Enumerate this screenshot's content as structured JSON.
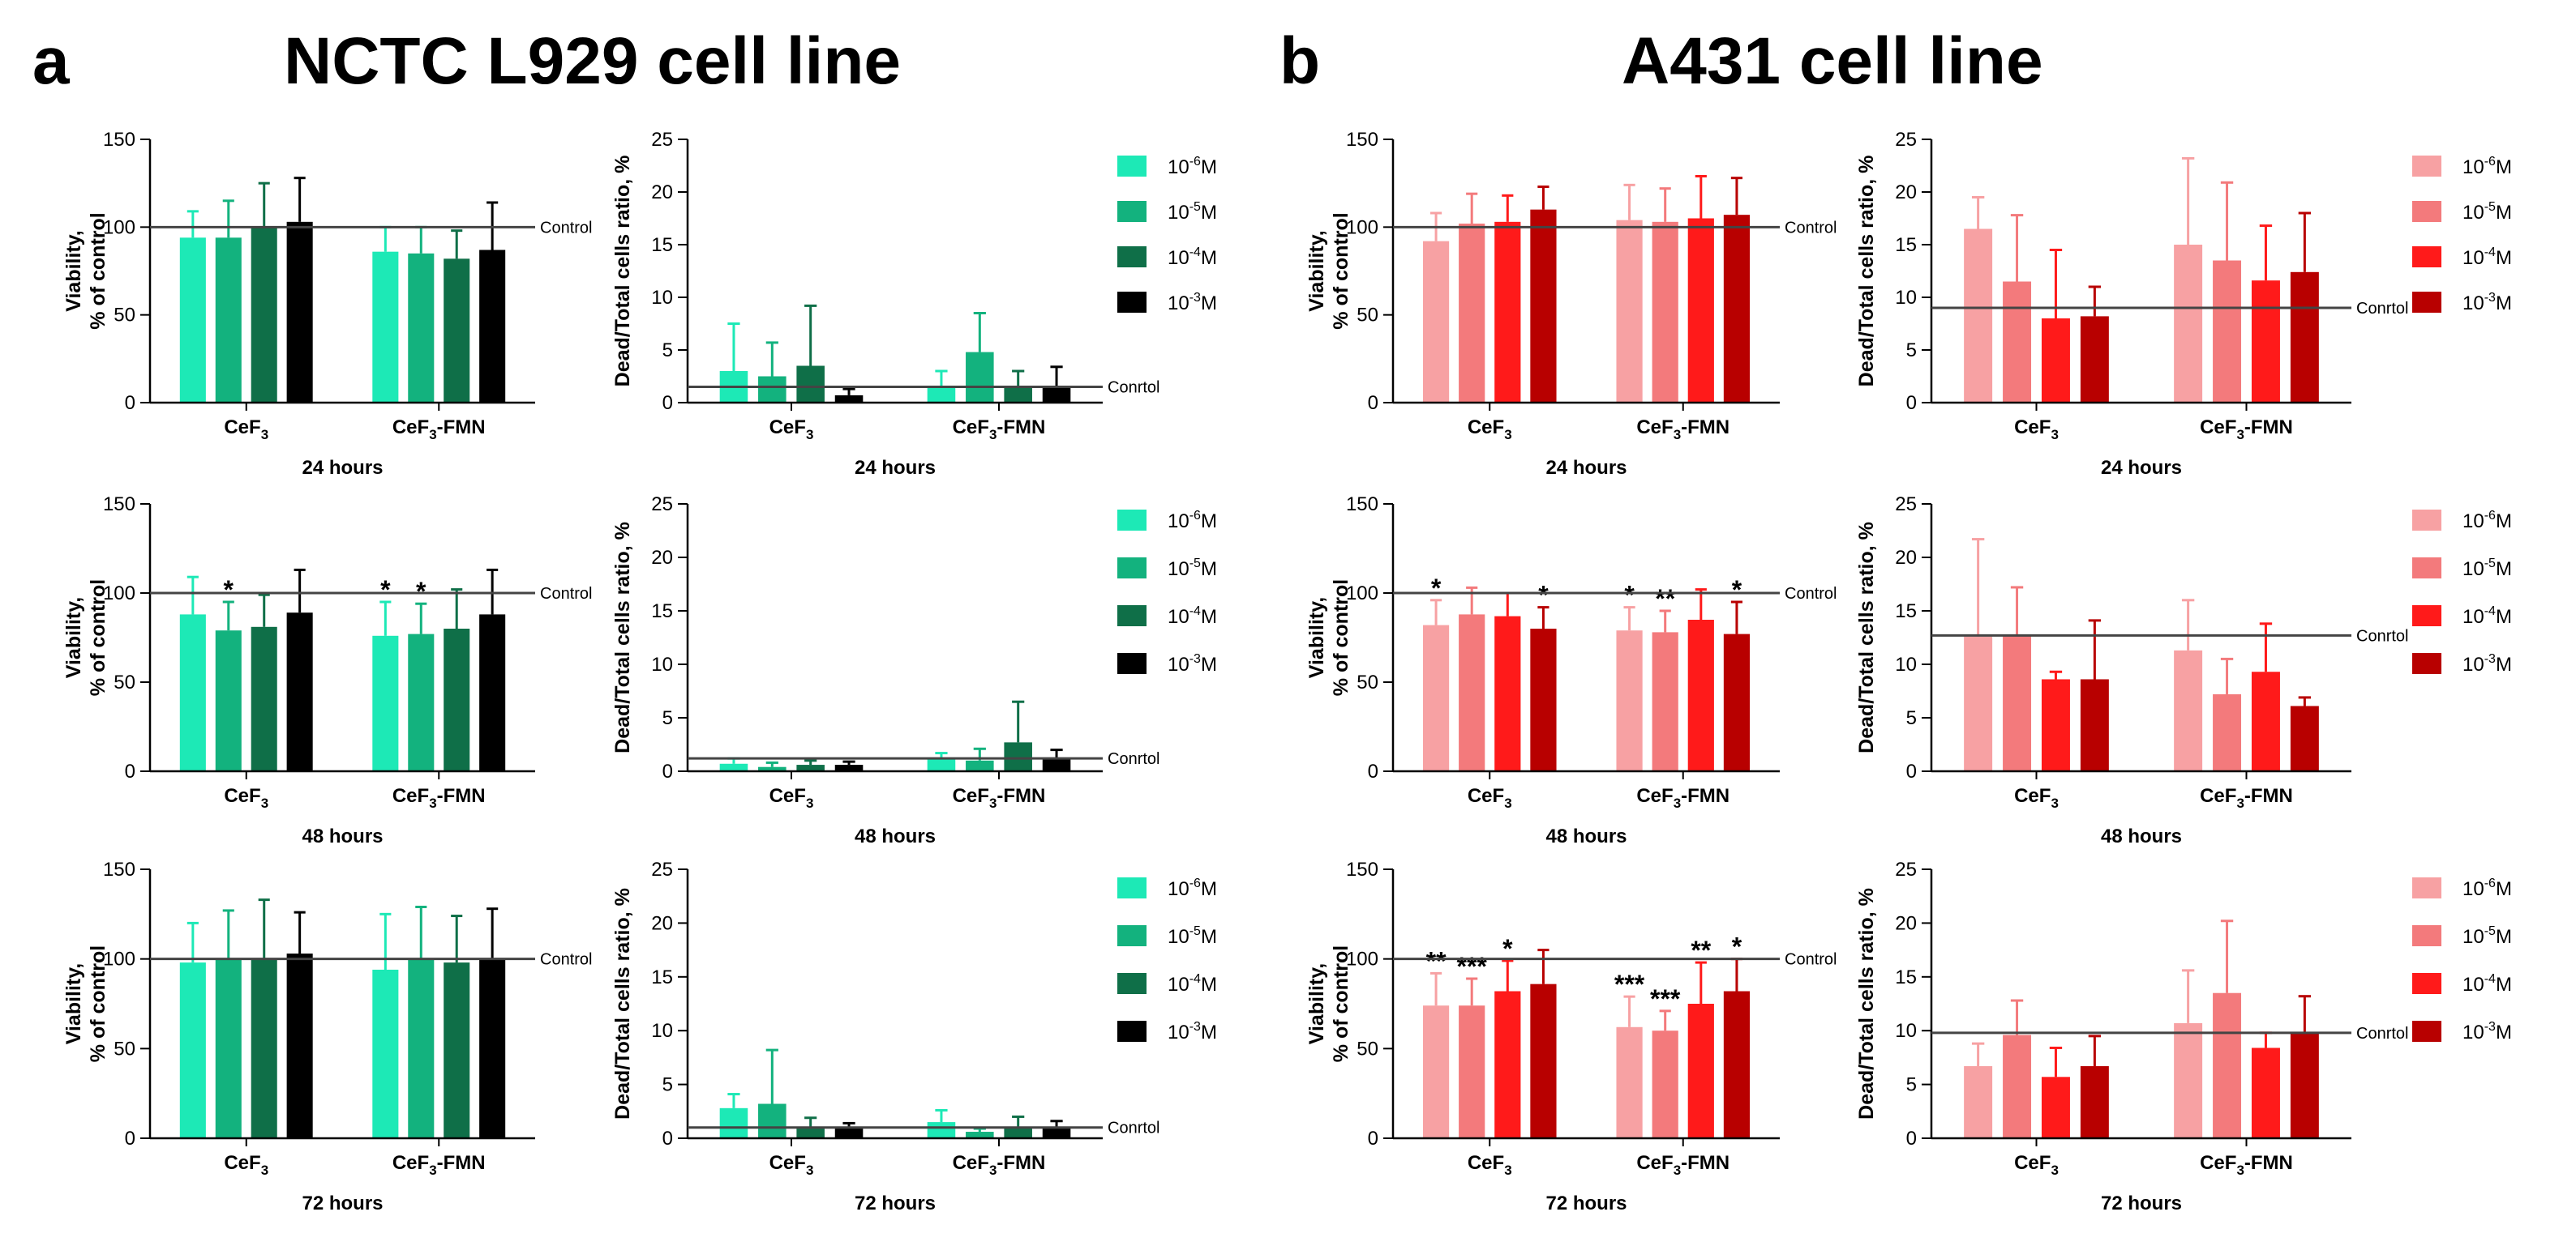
{
  "figure": {
    "panels": [
      {
        "letter": "a",
        "title": "NCTC L929 cell line"
      },
      {
        "letter": "b",
        "title": "A431 cell line"
      }
    ],
    "legend_labels": [
      {
        "base": "10",
        "exp": "-6",
        "unit": "M"
      },
      {
        "base": "10",
        "exp": "-5",
        "unit": "M"
      },
      {
        "base": "10",
        "exp": "-4",
        "unit": "M"
      },
      {
        "base": "10",
        "exp": "-3",
        "unit": "M"
      }
    ],
    "colors": {
      "a": [
        "#1de9b6",
        "#13b27e",
        "#0f6f48",
        "#000000"
      ],
      "b": [
        "#f7a1a3",
        "#f37a7c",
        "#ff1a1a",
        "#b80000"
      ]
    },
    "groups": [
      {
        "base": "CeF",
        "sub": "3",
        "suffix": ""
      },
      {
        "base": "CeF",
        "sub": "3",
        "suffix": "-FMN"
      }
    ]
  },
  "chart_data": [
    {
      "type": "bar",
      "panel": "a",
      "row": 0,
      "kind": "viability",
      "ylabel": [
        "Viability,",
        "% of control"
      ],
      "ylim": [
        0,
        150
      ],
      "yticks": [
        0,
        50,
        100,
        150
      ],
      "xlabel": "24 hours",
      "control_label": "Control",
      "control_value": 100,
      "series": [
        {
          "name": "10^-6M",
          "values": [
            94,
            86
          ],
          "errors": [
            15,
            14
          ]
        },
        {
          "name": "10^-5M",
          "values": [
            94,
            85
          ],
          "errors": [
            21,
            15
          ]
        },
        {
          "name": "10^-4M",
          "values": [
            100,
            82
          ],
          "errors": [
            25,
            16
          ]
        },
        {
          "name": "10^-3M",
          "values": [
            103,
            87
          ],
          "errors": [
            25,
            27
          ]
        }
      ],
      "stars": [
        [
          "",
          "",
          "",
          ""
        ],
        [
          "",
          "",
          "",
          ""
        ]
      ]
    },
    {
      "type": "bar",
      "panel": "a",
      "row": 0,
      "kind": "dead",
      "ylabel": [
        "Dead/Total cells ratio, %"
      ],
      "ylim": [
        0,
        25
      ],
      "yticks": [
        0,
        5,
        10,
        15,
        20,
        25
      ],
      "xlabel": "24 hours",
      "control_label": "Conrtol",
      "control_value": 1.5,
      "series": [
        {
          "name": "10^-6M",
          "values": [
            3,
            1.5
          ],
          "errors": [
            4.5,
            1.5
          ]
        },
        {
          "name": "10^-5M",
          "values": [
            2.5,
            4.8
          ],
          "errors": [
            3.2,
            3.7
          ]
        },
        {
          "name": "10^-4M",
          "values": [
            3.5,
            1.5
          ],
          "errors": [
            5.7,
            1.5
          ]
        },
        {
          "name": "10^-3M",
          "values": [
            0.7,
            1.6
          ],
          "errors": [
            0.6,
            1.8
          ]
        }
      ],
      "stars": [
        [
          "",
          "",
          "",
          ""
        ],
        [
          "",
          "",
          "",
          ""
        ]
      ]
    },
    {
      "type": "bar",
      "panel": "b",
      "row": 0,
      "kind": "viability",
      "ylabel": [
        "Viability,",
        "% of control"
      ],
      "ylim": [
        0,
        150
      ],
      "yticks": [
        0,
        50,
        100,
        150
      ],
      "xlabel": "24 hours",
      "control_label": "Control",
      "control_value": 100,
      "series": [
        {
          "name": "10^-6M",
          "values": [
            92,
            104
          ],
          "errors": [
            16,
            20
          ]
        },
        {
          "name": "10^-5M",
          "values": [
            102,
            103
          ],
          "errors": [
            17,
            19
          ]
        },
        {
          "name": "10^-4M",
          "values": [
            103,
            105
          ],
          "errors": [
            15,
            24
          ]
        },
        {
          "name": "10^-3M",
          "values": [
            110,
            107
          ],
          "errors": [
            13,
            21
          ]
        }
      ],
      "stars": [
        [
          "",
          "",
          "",
          ""
        ],
        [
          "",
          "",
          "",
          ""
        ]
      ]
    },
    {
      "type": "bar",
      "panel": "b",
      "row": 0,
      "kind": "dead",
      "ylabel": [
        "Dead/Total cells ratio, %"
      ],
      "ylim": [
        0,
        25
      ],
      "yticks": [
        0,
        5,
        10,
        15,
        20,
        25
      ],
      "xlabel": "24 hours",
      "control_label": "Conrtol",
      "control_value": 9,
      "series": [
        {
          "name": "10^-6M",
          "values": [
            16.5,
            15
          ],
          "errors": [
            3,
            8.2
          ]
        },
        {
          "name": "10^-5M",
          "values": [
            11.5,
            13.5
          ],
          "errors": [
            6.3,
            7.4
          ]
        },
        {
          "name": "10^-4M",
          "values": [
            8,
            11.6
          ],
          "errors": [
            6.5,
            5.2
          ]
        },
        {
          "name": "10^-3M",
          "values": [
            8.2,
            12.4
          ],
          "errors": [
            2.8,
            5.6
          ]
        }
      ],
      "stars": [
        [
          "",
          "",
          "",
          ""
        ],
        [
          "",
          "",
          "",
          ""
        ]
      ]
    },
    {
      "type": "bar",
      "panel": "a",
      "row": 1,
      "kind": "viability",
      "ylabel": [
        "Viability,",
        "% of control"
      ],
      "ylim": [
        0,
        150
      ],
      "yticks": [
        0,
        50,
        100,
        150
      ],
      "xlabel": "48 hours",
      "control_label": "Control",
      "control_value": 100,
      "series": [
        {
          "name": "10^-6M",
          "values": [
            88,
            76
          ],
          "errors": [
            21,
            19
          ]
        },
        {
          "name": "10^-5M",
          "values": [
            79,
            77
          ],
          "errors": [
            16,
            17
          ]
        },
        {
          "name": "10^-4M",
          "values": [
            81,
            80
          ],
          "errors": [
            18,
            22
          ]
        },
        {
          "name": "10^-3M",
          "values": [
            89,
            88
          ],
          "errors": [
            24,
            25
          ]
        }
      ],
      "stars": [
        [
          "",
          "*",
          "",
          ""
        ],
        [
          "*",
          "*",
          "",
          ""
        ]
      ]
    },
    {
      "type": "bar",
      "panel": "a",
      "row": 1,
      "kind": "dead",
      "ylabel": [
        "Dead/Total cells ratio, %"
      ],
      "ylim": [
        0,
        25
      ],
      "yticks": [
        0,
        5,
        10,
        15,
        20,
        25
      ],
      "xlabel": "48 hours",
      "control_label": "Conrtol",
      "control_value": 1.2,
      "series": [
        {
          "name": "10^-6M",
          "values": [
            0.7,
            1.2
          ],
          "errors": [
            0.5,
            0.5
          ]
        },
        {
          "name": "10^-5M",
          "values": [
            0.4,
            1
          ],
          "errors": [
            0.4,
            1.1
          ]
        },
        {
          "name": "10^-4M",
          "values": [
            0.6,
            2.7
          ],
          "errors": [
            0.4,
            3.8
          ]
        },
        {
          "name": "10^-3M",
          "values": [
            0.6,
            1.2
          ],
          "errors": [
            0.3,
            0.8
          ]
        }
      ],
      "stars": [
        [
          "",
          "",
          "",
          ""
        ],
        [
          "",
          "",
          "",
          ""
        ]
      ]
    },
    {
      "type": "bar",
      "panel": "b",
      "row": 1,
      "kind": "viability",
      "ylabel": [
        "Viability,",
        "% of control"
      ],
      "ylim": [
        0,
        150
      ],
      "yticks": [
        0,
        50,
        100,
        150
      ],
      "xlabel": "48 hours",
      "control_label": "Control",
      "control_value": 100,
      "series": [
        {
          "name": "10^-6M",
          "values": [
            82,
            79
          ],
          "errors": [
            14,
            13
          ]
        },
        {
          "name": "10^-5M",
          "values": [
            88,
            78
          ],
          "errors": [
            15,
            12
          ]
        },
        {
          "name": "10^-4M",
          "values": [
            87,
            85
          ],
          "errors": [
            13,
            17
          ]
        },
        {
          "name": "10^-3M",
          "values": [
            80,
            77
          ],
          "errors": [
            12,
            18
          ]
        }
      ],
      "stars": [
        [
          "*",
          "",
          "",
          "*"
        ],
        [
          "*",
          "**",
          "",
          "*"
        ]
      ]
    },
    {
      "type": "bar",
      "panel": "b",
      "row": 1,
      "kind": "dead",
      "ylabel": [
        "Dead/Total cells ratio, %"
      ],
      "ylim": [
        0,
        25
      ],
      "yticks": [
        0,
        5,
        10,
        15,
        20,
        25
      ],
      "xlabel": "48 hours",
      "control_label": "Conrtol",
      "control_value": 12.7,
      "series": [
        {
          "name": "10^-6M",
          "values": [
            12.6,
            11.3
          ],
          "errors": [
            9.1,
            4.7
          ]
        },
        {
          "name": "10^-5M",
          "values": [
            12.7,
            7.2
          ],
          "errors": [
            4.5,
            3.3
          ]
        },
        {
          "name": "10^-4M",
          "values": [
            8.6,
            9.3
          ],
          "errors": [
            0.7,
            4.5
          ]
        },
        {
          "name": "10^-3M",
          "values": [
            8.6,
            6.1
          ],
          "errors": [
            5.5,
            0.8
          ]
        }
      ],
      "stars": [
        [
          "",
          "",
          "",
          ""
        ],
        [
          "",
          "",
          "",
          ""
        ]
      ]
    },
    {
      "type": "bar",
      "panel": "a",
      "row": 2,
      "kind": "viability",
      "ylabel": [
        "Viability,",
        "% of control"
      ],
      "ylim": [
        0,
        150
      ],
      "yticks": [
        0,
        50,
        100,
        150
      ],
      "xlabel": "72 hours",
      "control_label": "Control",
      "control_value": 100,
      "series": [
        {
          "name": "10^-6M",
          "values": [
            98,
            94
          ],
          "errors": [
            22,
            31
          ]
        },
        {
          "name": "10^-5M",
          "values": [
            100,
            100
          ],
          "errors": [
            27,
            29
          ]
        },
        {
          "name": "10^-4M",
          "values": [
            100,
            98
          ],
          "errors": [
            33,
            26
          ]
        },
        {
          "name": "10^-3M",
          "values": [
            103,
            100
          ],
          "errors": [
            23,
            28
          ]
        }
      ],
      "stars": [
        [
          "",
          "",
          "",
          ""
        ],
        [
          "",
          "",
          "",
          ""
        ]
      ]
    },
    {
      "type": "bar",
      "panel": "a",
      "row": 2,
      "kind": "dead",
      "ylabel": [
        "Dead/Total cells ratio, %"
      ],
      "ylim": [
        0,
        25
      ],
      "yticks": [
        0,
        5,
        10,
        15,
        20,
        25
      ],
      "xlabel": "72 hours",
      "control_label": "Conrtol",
      "control_value": 1,
      "series": [
        {
          "name": "10^-6M",
          "values": [
            2.8,
            1.5
          ],
          "errors": [
            1.3,
            1.1
          ]
        },
        {
          "name": "10^-5M",
          "values": [
            3.2,
            0.6
          ],
          "errors": [
            5,
            0.3
          ]
        },
        {
          "name": "10^-4M",
          "values": [
            0.9,
            1
          ],
          "errors": [
            1,
            1
          ]
        },
        {
          "name": "10^-3M",
          "values": [
            0.9,
            0.9
          ],
          "errors": [
            0.5,
            0.7
          ]
        }
      ],
      "stars": [
        [
          "",
          "",
          "",
          ""
        ],
        [
          "",
          "",
          "",
          ""
        ]
      ]
    },
    {
      "type": "bar",
      "panel": "b",
      "row": 2,
      "kind": "viability",
      "ylabel": [
        "Viability,",
        "% of control"
      ],
      "ylim": [
        0,
        150
      ],
      "yticks": [
        0,
        50,
        100,
        150
      ],
      "xlabel": "72 hours",
      "control_label": "Control",
      "control_value": 100,
      "series": [
        {
          "name": "10^-6M",
          "values": [
            74,
            62
          ],
          "errors": [
            18,
            17
          ]
        },
        {
          "name": "10^-5M",
          "values": [
            74,
            60
          ],
          "errors": [
            15,
            11
          ]
        },
        {
          "name": "10^-4M",
          "values": [
            82,
            75
          ],
          "errors": [
            17,
            23
          ]
        },
        {
          "name": "10^-3M",
          "values": [
            86,
            82
          ],
          "errors": [
            19,
            18
          ]
        }
      ],
      "stars": [
        [
          "**",
          "***",
          "*",
          ""
        ],
        [
          "***",
          "***",
          "**",
          "*"
        ]
      ]
    },
    {
      "type": "bar",
      "panel": "b",
      "row": 2,
      "kind": "dead",
      "ylabel": [
        "Dead/Total cells ratio, %"
      ],
      "ylim": [
        0,
        25
      ],
      "yticks": [
        0,
        5,
        10,
        15,
        20,
        25
      ],
      "xlabel": "72 hours",
      "control_label": "Conrtol",
      "control_value": 9.8,
      "series": [
        {
          "name": "10^-6M",
          "values": [
            6.7,
            10.7
          ],
          "errors": [
            2.1,
            4.9
          ]
        },
        {
          "name": "10^-5M",
          "values": [
            9.6,
            13.5
          ],
          "errors": [
            3.2,
            6.7
          ]
        },
        {
          "name": "10^-4M",
          "values": [
            5.7,
            8.4
          ],
          "errors": [
            2.7,
            1.4
          ]
        },
        {
          "name": "10^-3M",
          "values": [
            6.7,
            9.8
          ],
          "errors": [
            2.8,
            3.4
          ]
        }
      ],
      "stars": [
        [
          "",
          "",
          "",
          ""
        ],
        [
          "",
          "",
          "",
          ""
        ]
      ]
    }
  ]
}
